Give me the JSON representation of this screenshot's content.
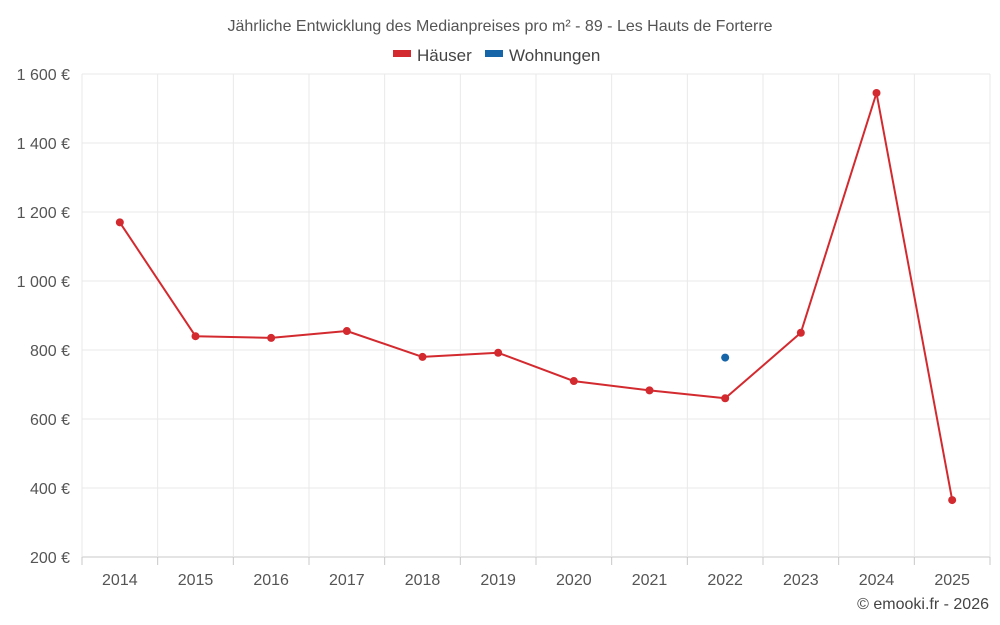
{
  "chart_data": {
    "type": "line",
    "title": "Jährliche Entwicklung des Medianpreises pro m² - 89 - Les Hauts de Forterre",
    "categories": [
      "2014",
      "2015",
      "2016",
      "2017",
      "2018",
      "2019",
      "2020",
      "2021",
      "2022",
      "2023",
      "2024",
      "2025"
    ],
    "series": [
      {
        "name": "Häuser",
        "color": "#d32a2f",
        "values": [
          1170,
          840,
          835,
          855,
          780,
          792,
          710,
          683,
          660,
          850,
          1545,
          365
        ]
      },
      {
        "name": "Wohnungen",
        "color": "#1565a8",
        "values": [
          null,
          null,
          null,
          null,
          null,
          null,
          null,
          null,
          778,
          null,
          null,
          null
        ]
      }
    ],
    "y_ticks": [
      "1 600 €",
      "1 400 €",
      "1 200 €",
      "1 000 €",
      "800 €",
      "600 €",
      "400 €",
      "200 €"
    ],
    "y_tick_values": [
      1600,
      1400,
      1200,
      1000,
      800,
      600,
      400,
      200
    ],
    "ylim": [
      200,
      1600
    ],
    "grid": true,
    "legend_position": "top-center",
    "credit": "© emooki.fr - 2026"
  }
}
